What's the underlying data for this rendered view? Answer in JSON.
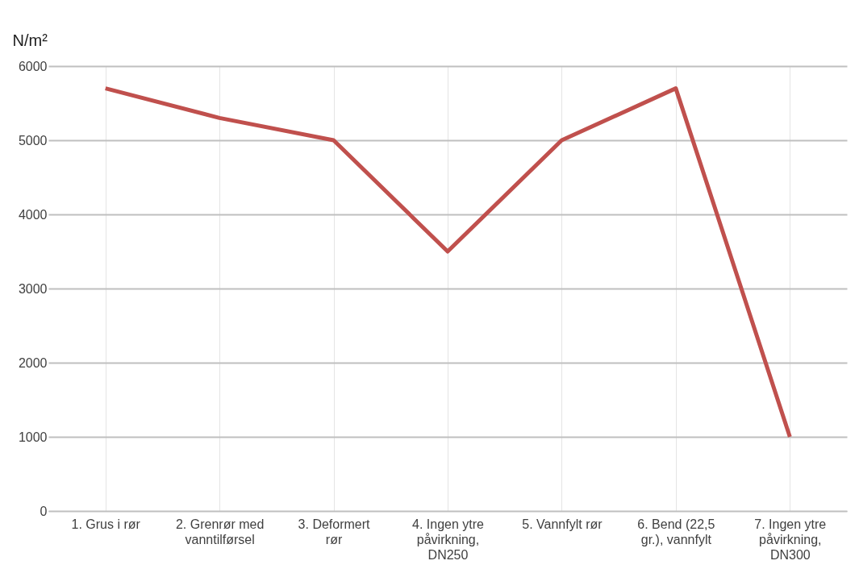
{
  "chart_data": {
    "type": "line",
    "ylabel": "N/m²",
    "categories": [
      "1. Grus i rør",
      "2. Grenrør med vanntilførsel",
      "3. Deformert rør",
      "4. Ingen ytre påvirkning, DN250",
      "5. Vannfylt rør",
      "6. Bend (22,5 gr.), vannfylt",
      "7. Ingen ytre påvirkning, DN300"
    ],
    "series": [
      {
        "color": "#c0504d",
        "values": [
          5700,
          5300,
          5000,
          3500,
          5000,
          5700,
          1000
        ]
      }
    ],
    "ylim": [
      0,
      6000
    ],
    "yticks": [
      0,
      1000,
      2000,
      3000,
      4000,
      5000,
      6000
    ],
    "grid": true,
    "marker": "none",
    "line_style": "solid",
    "legend": false
  }
}
